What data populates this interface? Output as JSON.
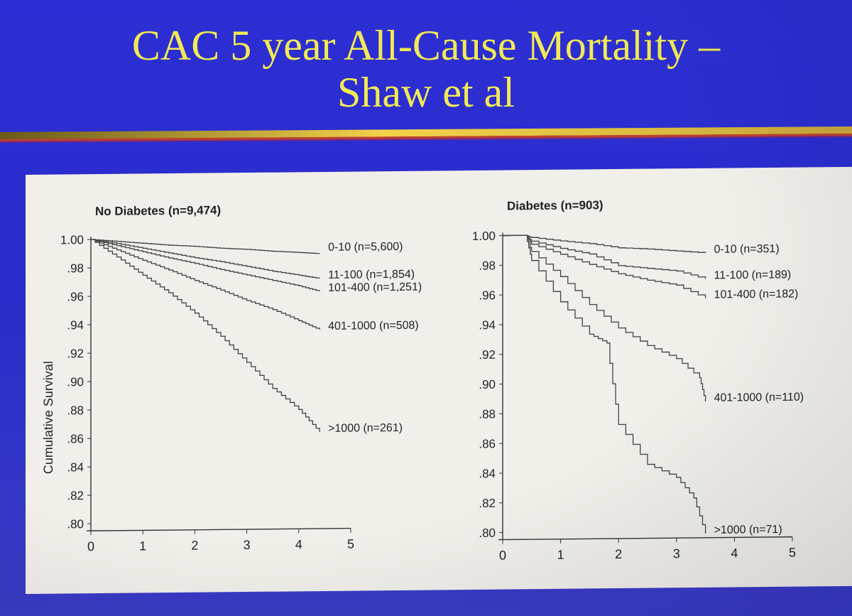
{
  "slide": {
    "title_line1": "CAC 5 year All-Cause Mortality –",
    "title_line2": "Shaw et al",
    "title_color": "#f2ea55",
    "background_color": "#2d2fd4"
  },
  "chart_data": [
    {
      "type": "line",
      "title": "No Diabetes (n=9,474)",
      "xlabel": "",
      "ylabel": "Cumulative Survival",
      "xlim": [
        0,
        5
      ],
      "ylim": [
        0.8,
        1.0
      ],
      "x_ticks": [
        "0",
        "1",
        "2",
        "3",
        "4",
        "5"
      ],
      "y_ticks": [
        "1.00",
        ".98",
        ".96",
        ".94",
        ".92",
        ".90",
        ".88",
        ".86",
        ".84",
        ".82",
        ".80"
      ],
      "series": [
        {
          "name": "0-10 (n=5,600)",
          "x": [
            0,
            0.5,
            1,
            1.5,
            2,
            2.5,
            3,
            3.5,
            4,
            4.4
          ],
          "y": [
            1.0,
            0.9985,
            0.997,
            0.9955,
            0.9945,
            0.993,
            0.992,
            0.9905,
            0.9895,
            0.9885
          ]
        },
        {
          "name": "11-100 (n=1,854)",
          "x": [
            0,
            0.5,
            1,
            1.5,
            2,
            2.5,
            3,
            3.5,
            4,
            4.4
          ],
          "y": [
            1.0,
            0.997,
            0.9935,
            0.99,
            0.9865,
            0.9835,
            0.98,
            0.9765,
            0.9735,
            0.971
          ]
        },
        {
          "name": "101-400 (n=1,251)",
          "x": [
            0,
            0.5,
            1,
            1.5,
            2,
            2.5,
            3,
            3.5,
            4,
            4.4
          ],
          "y": [
            1.0,
            0.9955,
            0.991,
            0.9865,
            0.9825,
            0.978,
            0.974,
            0.97,
            0.966,
            0.962
          ]
        },
        {
          "name": "401-1000 (n=508)",
          "x": [
            0,
            0.5,
            1,
            1.5,
            2,
            2.5,
            3,
            3.5,
            4,
            4.4
          ],
          "y": [
            1.0,
            0.9925,
            0.985,
            0.978,
            0.9705,
            0.9635,
            0.956,
            0.9495,
            0.9415,
            0.935
          ]
        },
        {
          "name": ">1000 (n=261)",
          "x": [
            0,
            0.5,
            1,
            1.5,
            2,
            2.5,
            3,
            3.5,
            4,
            4.4
          ],
          "y": [
            1.0,
            0.9875,
            0.9745,
            0.962,
            0.9475,
            0.931,
            0.9125,
            0.894,
            0.879,
            0.863
          ]
        }
      ]
    },
    {
      "type": "line",
      "title": "Diabetes (n=903)",
      "xlabel": "",
      "ylabel": "",
      "xlim": [
        0,
        5
      ],
      "ylim": [
        0.8,
        1.0
      ],
      "x_ticks": [
        "0",
        "1",
        "2",
        "3",
        "4",
        "5"
      ],
      "y_ticks": [
        "1.00",
        ".98",
        ".96",
        ".94",
        ".92",
        ".90",
        ".88",
        ".86",
        ".84",
        ".82",
        ".80"
      ],
      "series": [
        {
          "name": "0-10 (n=351)",
          "x": [
            0,
            0.4,
            0.5,
            1,
            1.5,
            2,
            2.5,
            3,
            3.5
          ],
          "y": [
            1.0,
            1.0,
            0.9985,
            0.996,
            0.994,
            0.991,
            0.99,
            0.9885,
            0.987
          ]
        },
        {
          "name": "11-100 (n=189)",
          "x": [
            0,
            0.4,
            0.5,
            1,
            1.5,
            2,
            2.5,
            3,
            3.5
          ],
          "y": [
            1.0,
            1.0,
            0.996,
            0.991,
            0.987,
            0.979,
            0.977,
            0.975,
            0.9695
          ]
        },
        {
          "name": "101-400 (n=182)",
          "x": [
            0,
            0.4,
            0.5,
            1,
            1.5,
            2,
            2.5,
            3,
            3.5
          ],
          "y": [
            1.0,
            1.0,
            0.994,
            0.987,
            0.98,
            0.9735,
            0.969,
            0.9655,
            0.9565
          ]
        },
        {
          "name": "401-1000 (n=110)",
          "x": [
            0,
            0.4,
            0.5,
            1,
            1.5,
            2,
            2.5,
            3,
            3.4,
            3.5
          ],
          "y": [
            1.0,
            1.0,
            0.989,
            0.972,
            0.953,
            0.937,
            0.925,
            0.916,
            0.903,
            0.887
          ]
        },
        {
          "name": ">1000 (n=71)",
          "x": [
            0,
            0.4,
            0.5,
            1,
            1.5,
            1.8,
            2,
            2.5,
            3,
            3.3,
            3.5
          ],
          "y": [
            1.0,
            1.0,
            0.983,
            0.955,
            0.933,
            0.927,
            0.872,
            0.845,
            0.836,
            0.822,
            0.798
          ]
        }
      ]
    }
  ]
}
